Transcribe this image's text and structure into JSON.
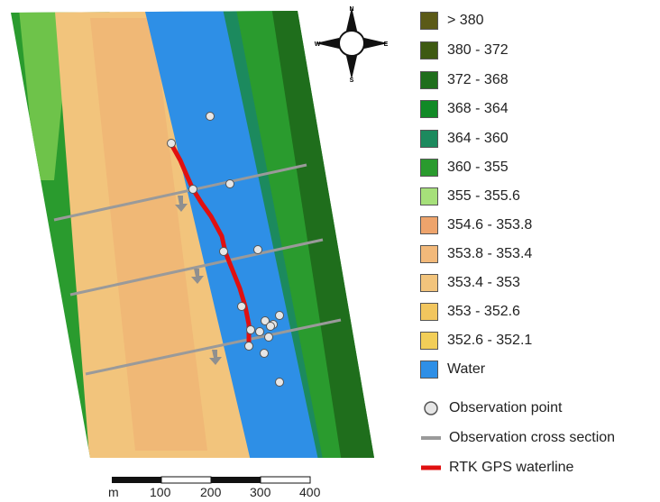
{
  "legend": {
    "classes": [
      {
        "label": "> 380",
        "color": "#5b5a17"
      },
      {
        "label": "380 - 372",
        "color": "#3e5a12"
      },
      {
        "label": "372 - 368",
        "color": "#1f6e1c"
      },
      {
        "label": "368 - 364",
        "color": "#118a26"
      },
      {
        "label": "364 - 360",
        "color": "#1c8a5e"
      },
      {
        "label": "360 - 355",
        "color": "#2a9b2e"
      },
      {
        "label": "355 - 355.6",
        "color": "#a6e07a"
      },
      {
        "label": "354.6 - 353.8",
        "color": "#eea46c"
      },
      {
        "label": "353.8 - 353.4",
        "color": "#f2b97a"
      },
      {
        "label": "353.4 - 353",
        "color": "#f2c47c"
      },
      {
        "label": "353 - 352.6",
        "color": "#f2c65e"
      },
      {
        "label": "352.6 - 352.1",
        "color": "#f2ce58"
      },
      {
        "label": "Water",
        "color": "#2e8fe6"
      }
    ],
    "symbols": [
      {
        "label": "Observation point",
        "icon": "observation-point-icon",
        "color": "#e6e6e6"
      },
      {
        "label": "Observation cross section",
        "icon": "cross-section-line-icon",
        "color": "#9a9a9a"
      },
      {
        "label": "RTK GPS waterline",
        "icon": "waterline-icon",
        "color": "#e01010"
      }
    ]
  },
  "compass": {
    "n": "N",
    "s": "S",
    "e": "E",
    "w": "W"
  },
  "scale_bar": {
    "unit": "m",
    "ticks": [
      "100",
      "200",
      "300",
      "400"
    ]
  }
}
